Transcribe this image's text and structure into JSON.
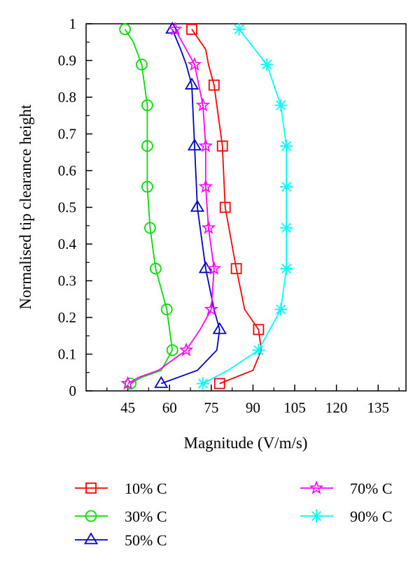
{
  "chart_data": {
    "type": "line",
    "xlabel": "Magnitude (V/m/s)",
    "ylabel": "Normalised tip clearance height",
    "xlim": [
      30,
      145
    ],
    "ylim": [
      0,
      1
    ],
    "x_ticks": [
      45,
      60,
      75,
      90,
      105,
      120,
      135
    ],
    "y_ticks": [
      0,
      0.1,
      0.2,
      0.3,
      0.4,
      0.5,
      0.6,
      0.7,
      0.8,
      0.9,
      1
    ],
    "grid": false,
    "legend_position": "bottom",
    "series": [
      {
        "name": "10% C",
        "color": "#ff0000",
        "marker": "square",
        "points": [
          [
            78,
            0.02
          ],
          [
            90,
            0.056
          ],
          [
            93,
            0.111
          ],
          [
            92,
            0.167
          ],
          [
            87,
            0.222
          ],
          [
            84,
            0.333
          ],
          [
            80,
            0.5
          ],
          [
            79,
            0.667
          ],
          [
            76,
            0.833
          ],
          [
            74,
            0.889
          ],
          [
            73,
            0.93
          ],
          [
            68,
            0.985
          ]
        ],
        "marked": [
          0,
          3,
          5,
          6,
          7,
          8,
          11
        ]
      },
      {
        "name": "30% C",
        "color": "#00dd00",
        "marker": "circle",
        "points": [
          [
            46,
            0.02
          ],
          [
            50,
            0.037
          ],
          [
            57,
            0.056
          ],
          [
            61,
            0.111
          ],
          [
            60,
            0.167
          ],
          [
            59,
            0.222
          ],
          [
            55,
            0.333
          ],
          [
            53,
            0.444
          ],
          [
            52,
            0.556
          ],
          [
            52,
            0.667
          ],
          [
            52,
            0.778
          ],
          [
            50,
            0.889
          ],
          [
            47,
            0.95
          ],
          [
            44,
            0.985
          ]
        ],
        "marked": [
          0,
          3,
          5,
          6,
          7,
          8,
          9,
          10,
          11,
          13
        ]
      },
      {
        "name": "50% C",
        "color": "#0000cc",
        "marker": "triangle",
        "points": [
          [
            57,
            0.02
          ],
          [
            70,
            0.056
          ],
          [
            77,
            0.111
          ],
          [
            78,
            0.167
          ],
          [
            76,
            0.222
          ],
          [
            73,
            0.333
          ],
          [
            70,
            0.5
          ],
          [
            69,
            0.667
          ],
          [
            68,
            0.833
          ],
          [
            66,
            0.889
          ],
          [
            64,
            0.93
          ],
          [
            61,
            0.985
          ]
        ],
        "marked": [
          0,
          3,
          5,
          6,
          7,
          8,
          11
        ]
      },
      {
        "name": "70% C",
        "color": "#ff00ff",
        "marker": "star",
        "points": [
          [
            45,
            0.02
          ],
          [
            49,
            0.037
          ],
          [
            56,
            0.056
          ],
          [
            66,
            0.111
          ],
          [
            71,
            0.167
          ],
          [
            75,
            0.222
          ],
          [
            76,
            0.333
          ],
          [
            74,
            0.444
          ],
          [
            73,
            0.556
          ],
          [
            73,
            0.667
          ],
          [
            72,
            0.778
          ],
          [
            69,
            0.889
          ],
          [
            66,
            0.93
          ],
          [
            62,
            0.985
          ]
        ],
        "marked": [
          0,
          3,
          5,
          6,
          7,
          8,
          9,
          10,
          11,
          13
        ]
      },
      {
        "name": "90% C",
        "color": "#00ffff",
        "marker": "asterisk",
        "points": [
          [
            72,
            0.02
          ],
          [
            81,
            0.056
          ],
          [
            92,
            0.111
          ],
          [
            100,
            0.222
          ],
          [
            102,
            0.333
          ],
          [
            102,
            0.444
          ],
          [
            102,
            0.556
          ],
          [
            102,
            0.667
          ],
          [
            100,
            0.778
          ],
          [
            95,
            0.889
          ],
          [
            85,
            0.985
          ]
        ],
        "marked": [
          0,
          2,
          3,
          4,
          5,
          6,
          7,
          8,
          9,
          10
        ]
      }
    ]
  }
}
